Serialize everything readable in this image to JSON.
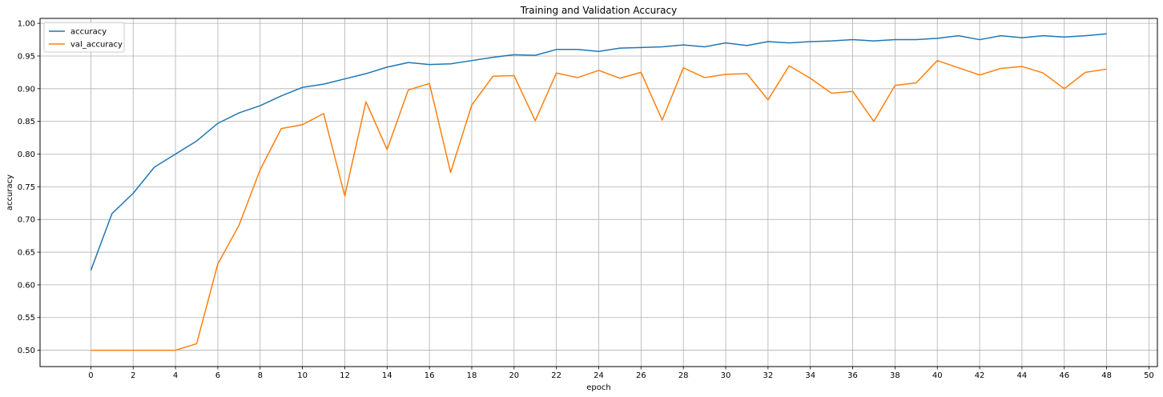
{
  "chart_data": {
    "type": "line",
    "title": "Training and Validation Accuracy",
    "xlabel": "epoch",
    "ylabel": "accuracy",
    "xlim": [
      -2.4,
      50.4
    ],
    "ylim": [
      0.475,
      1.0075
    ],
    "xticks": [
      0,
      2,
      4,
      6,
      8,
      10,
      12,
      14,
      16,
      18,
      20,
      22,
      24,
      26,
      28,
      30,
      32,
      34,
      36,
      38,
      40,
      42,
      44,
      46,
      48,
      50
    ],
    "yticks": [
      0.5,
      0.55,
      0.6,
      0.65,
      0.7,
      0.75,
      0.8,
      0.85,
      0.9,
      0.95,
      1.0
    ],
    "ytick_labels": [
      "0.50",
      "0.55",
      "0.60",
      "0.65",
      "0.70",
      "0.75",
      "0.80",
      "0.85",
      "0.90",
      "0.95",
      "1.00"
    ],
    "grid": true,
    "legend_position": "top-left",
    "x": [
      0,
      1,
      2,
      3,
      4,
      5,
      6,
      7,
      8,
      9,
      10,
      11,
      12,
      13,
      14,
      15,
      16,
      17,
      18,
      19,
      20,
      21,
      22,
      23,
      24,
      25,
      26,
      27,
      28,
      29,
      30,
      31,
      32,
      33,
      34,
      35,
      36,
      37,
      38,
      39,
      40,
      41,
      42,
      43,
      44,
      45,
      46,
      47,
      48
    ],
    "series": [
      {
        "name": "accuracy",
        "color": "#1f77b4",
        "values": [
          0.622,
          0.709,
          0.74,
          0.78,
          0.8,
          0.82,
          0.847,
          0.863,
          0.874,
          0.889,
          0.902,
          0.907,
          0.915,
          0.923,
          0.933,
          0.94,
          0.937,
          0.938,
          0.943,
          0.948,
          0.952,
          0.951,
          0.96,
          0.96,
          0.957,
          0.962,
          0.963,
          0.964,
          0.967,
          0.964,
          0.97,
          0.966,
          0.972,
          0.97,
          0.972,
          0.973,
          0.975,
          0.973,
          0.975,
          0.975,
          0.977,
          0.981,
          0.975,
          0.981,
          0.978,
          0.981,
          0.979,
          0.981,
          0.984
        ]
      },
      {
        "name": "val_accuracy",
        "color": "#ff7f0e",
        "values": [
          0.5,
          0.5,
          0.5,
          0.5,
          0.5,
          0.51,
          0.632,
          0.691,
          0.776,
          0.839,
          0.845,
          0.862,
          0.736,
          0.88,
          0.807,
          0.898,
          0.908,
          0.772,
          0.875,
          0.919,
          0.92,
          0.851,
          0.924,
          0.917,
          0.928,
          0.916,
          0.925,
          0.852,
          0.932,
          0.917,
          0.922,
          0.923,
          0.883,
          0.935,
          0.916,
          0.893,
          0.896,
          0.85,
          0.905,
          0.909,
          0.943,
          0.932,
          0.921,
          0.931,
          0.934,
          0.924,
          0.9,
          0.925,
          0.93
        ]
      }
    ]
  }
}
